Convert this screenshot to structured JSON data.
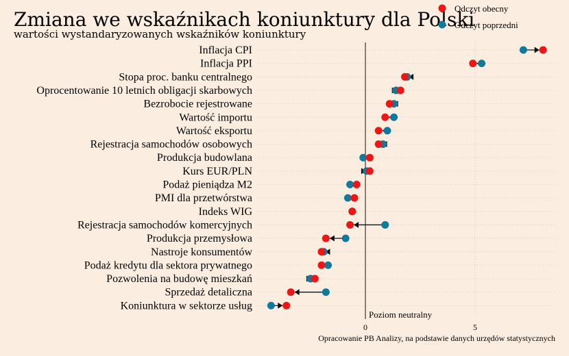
{
  "chart_data": {
    "type": "scatter",
    "title": "Zmiana we wskaźnikach koniunktury dla Polski",
    "subtitle": "wartości wystandaryzowanych wskaźników koniunktury",
    "legend": {
      "placement": "top-right",
      "current_label": "Odczyt obecny",
      "previous_label": "Odczyt poprzedni"
    },
    "colors": {
      "current": "#f01414",
      "previous": "#0f7a9c",
      "arrow": "#111111",
      "grid": "#cfc5bb"
    },
    "x_ticks": [
      0,
      5
    ],
    "xlim": [
      -4.6,
      9.3
    ],
    "neutral_label": "Poziom neutralny",
    "source": "Opracowanie  PB Analizy, na podstawie danych urzędów statystycznych",
    "grid": true,
    "series": [
      {
        "name": "Odczyt obecny",
        "key": "current"
      },
      {
        "name": "Odczyt poprzedni",
        "key": "previous"
      }
    ],
    "categories": [
      "Inflacja CPI",
      "Inflacja PPI",
      "Stopa proc. banku centralnego",
      "Oprocentowanie 10 letnich obligacji skarbowych",
      "Bezrobocie rejestrowane",
      "Wartość importu",
      "Wartość eksportu",
      "Rejestracja samochodów osobowych",
      "Produkcja budowlana",
      "Kurs EUR/PLN",
      "Podaż pieniądza M2",
      "PMI dla przetwórstwa",
      "Indeks WIG",
      "Rejestracja samochodów komercyjnych",
      "Produkcja przemysłowa",
      "Nastroje konsumentów",
      "Podaż kredytu dla sektora prywatnego",
      "Pozwolenia na budowę mieszkań",
      "Sprzedaż detaliczna",
      "Koniunktura w sektorze usług"
    ],
    "current": [
      8.1,
      4.9,
      1.8,
      1.6,
      1.1,
      0.9,
      0.6,
      0.6,
      0.2,
      0.2,
      -0.4,
      -0.5,
      -0.6,
      -0.7,
      -1.8,
      -2.0,
      -2.0,
      -2.3,
      -3.4,
      -3.6
    ],
    "previous": [
      7.2,
      5.3,
      1.9,
      1.4,
      1.3,
      1.3,
      1.0,
      0.8,
      -0.1,
      0.05,
      -0.7,
      -0.8,
      -0.6,
      0.9,
      -0.9,
      -1.9,
      -1.7,
      -2.5,
      -1.8,
      -4.3
    ]
  }
}
